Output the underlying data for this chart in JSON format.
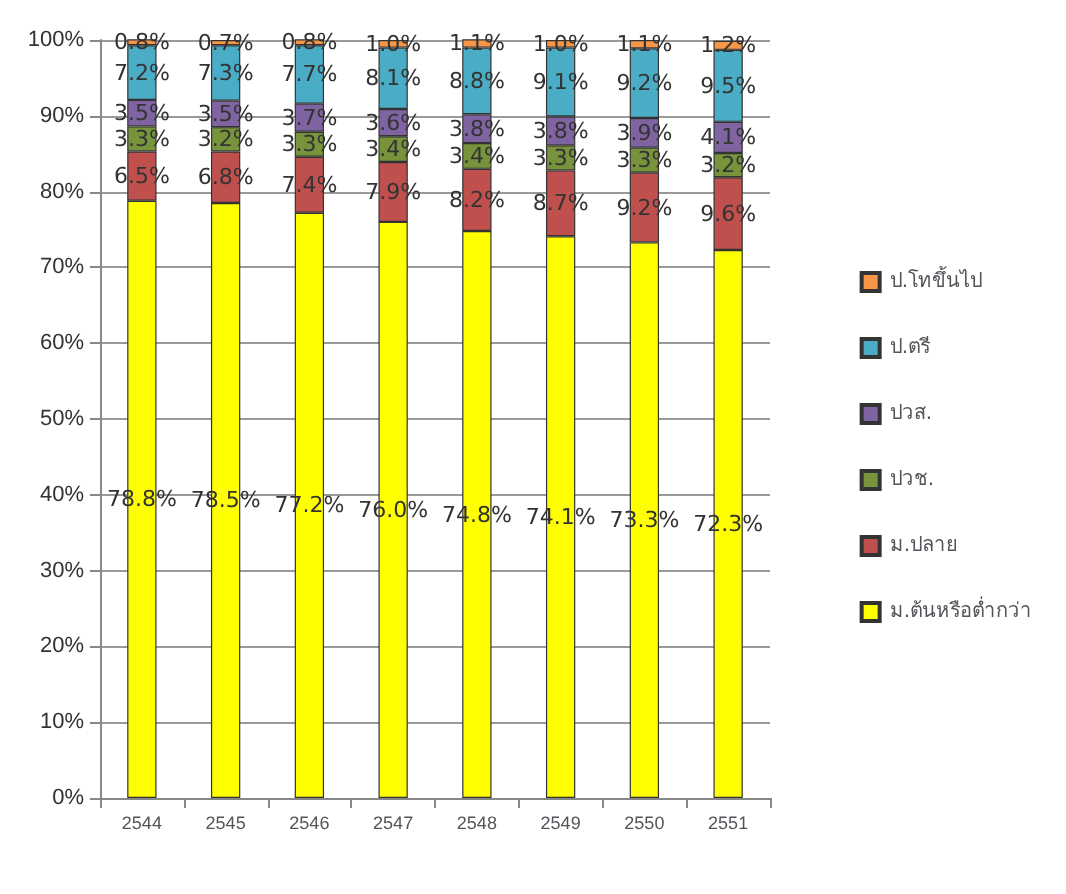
{
  "chart_data": {
    "type": "bar",
    "stacked": true,
    "categories": [
      "2544",
      "2545",
      "2546",
      "2547",
      "2548",
      "2549",
      "2550",
      "2551"
    ],
    "series": [
      {
        "name": "ม.ต้นหรือต่ำกว่า",
        "color": "#ffff00",
        "values": [
          78.8,
          78.5,
          77.2,
          76.0,
          74.8,
          74.1,
          73.3,
          72.3
        ],
        "value_labels": [
          "78.8%",
          "78.5%",
          "77.2%",
          "76.0%",
          "74.8%",
          "74.1%",
          "73.3%",
          "72.3%"
        ]
      },
      {
        "name": "ม.ปลาย",
        "color": "#c0504d",
        "values": [
          6.5,
          6.8,
          7.4,
          7.9,
          8.2,
          8.7,
          9.2,
          9.6
        ],
        "value_labels": [
          "6.5%",
          "6.8%",
          "7.4%",
          "7.9%",
          "8.2%",
          "8.7%",
          "9.2%",
          "9.6%"
        ]
      },
      {
        "name": "ปวช.",
        "color": "#77933c",
        "values": [
          3.3,
          3.2,
          3.3,
          3.4,
          3.4,
          3.3,
          3.3,
          3.2
        ],
        "value_labels": [
          "3.3%",
          "3.2%",
          "3.3%",
          "3.4%",
          "3.4%",
          "3.3%",
          "3.3%",
          "3.2%"
        ]
      },
      {
        "name": "ปวส.",
        "color": "#8064a2",
        "values": [
          3.5,
          3.5,
          3.7,
          3.6,
          3.8,
          3.8,
          3.9,
          4.1
        ],
        "value_labels": [
          "3.5%",
          "3.5%",
          "3.7%",
          "3.6%",
          "3.8%",
          "3.8%",
          "3.9%",
          "4.1%"
        ]
      },
      {
        "name": "ป.ตรี",
        "color": "#4bacc6",
        "values": [
          7.2,
          7.3,
          7.7,
          8.1,
          8.8,
          9.1,
          9.2,
          9.5
        ],
        "value_labels": [
          "7.2%",
          "7.3%",
          "7.7%",
          "8.1%",
          "8.8%",
          "9.1%",
          "9.2%",
          "9.5%"
        ]
      },
      {
        "name": "ป.โทขึ้นไป",
        "color": "#f79646",
        "values": [
          0.8,
          0.7,
          0.8,
          1.0,
          1.1,
          1.0,
          1.1,
          1.2
        ],
        "value_labels": [
          "0.8%",
          "0.7%",
          "0.8%",
          "1.0%",
          "1.1%",
          "1.0%",
          "1.1%",
          "1.2%"
        ]
      }
    ],
    "ylim": [
      0,
      100
    ],
    "yticks": [
      {
        "value": 0,
        "label": "0%"
      },
      {
        "value": 10,
        "label": "10%"
      },
      {
        "value": 20,
        "label": "20%"
      },
      {
        "value": 30,
        "label": "30%"
      },
      {
        "value": 40,
        "label": "40%"
      },
      {
        "value": 50,
        "label": "50%"
      },
      {
        "value": 60,
        "label": "60%"
      },
      {
        "value": 70,
        "label": "70%"
      },
      {
        "value": 80,
        "label": "80%"
      },
      {
        "value": 90,
        "label": "90%"
      },
      {
        "value": 100,
        "label": "100%"
      }
    ],
    "grid": "y",
    "legend": "right"
  }
}
